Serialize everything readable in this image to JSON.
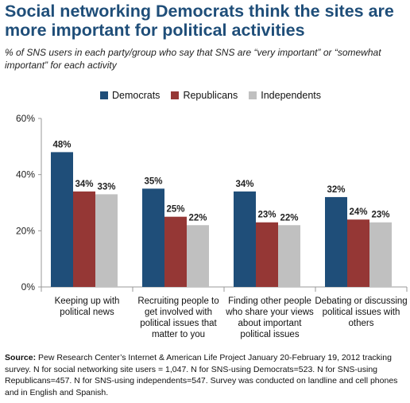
{
  "title": "Social networking Democrats think the sites are more important for political activities",
  "subtitle": "% of SNS users in each party/group who say that SNS are “very important” or “somewhat important” for each activity",
  "source_label": "Source:",
  "source_text": "Pew Research Center’s Internet & American Life Project January 20-February 19, 2012 tracking survey. N for social networking site users = 1,047. N for SNS-using Democrats=523. N for SNS-using Republicans=457. N for SNS-using independents=547.  Survey was conducted on landline and cell phones and in English and Spanish.",
  "colors": {
    "Democrats": "#1f4e79",
    "Republicans": "#953735",
    "Independents": "#c0c0c0"
  },
  "chart_data": {
    "type": "bar",
    "categories": [
      [
        "Keeping up with",
        "political news"
      ],
      [
        "Recruiting people to",
        "get involved with",
        "political issues that",
        "matter to you"
      ],
      [
        "Finding other people",
        "who share your views",
        "about important",
        "political issues"
      ],
      [
        "Debating or discussing",
        "political issues with",
        "others"
      ]
    ],
    "series": [
      {
        "name": "Democrats",
        "values": [
          48,
          35,
          34,
          32
        ],
        "labels": [
          "48%",
          "35%",
          "34%",
          "32%"
        ]
      },
      {
        "name": "Republicans",
        "values": [
          34,
          25,
          23,
          24
        ],
        "labels": [
          "34%",
          "25%",
          "23%",
          "24%"
        ]
      },
      {
        "name": "Independents",
        "values": [
          33,
          22,
          22,
          23
        ],
        "labels": [
          "33%",
          "22%",
          "22%",
          "23%"
        ]
      }
    ],
    "ylim": [
      0,
      60
    ],
    "yticks": [
      0,
      20,
      40,
      60
    ],
    "ytick_labels": [
      "0%",
      "20%",
      "40%",
      "60%"
    ],
    "legend_position": "top"
  }
}
